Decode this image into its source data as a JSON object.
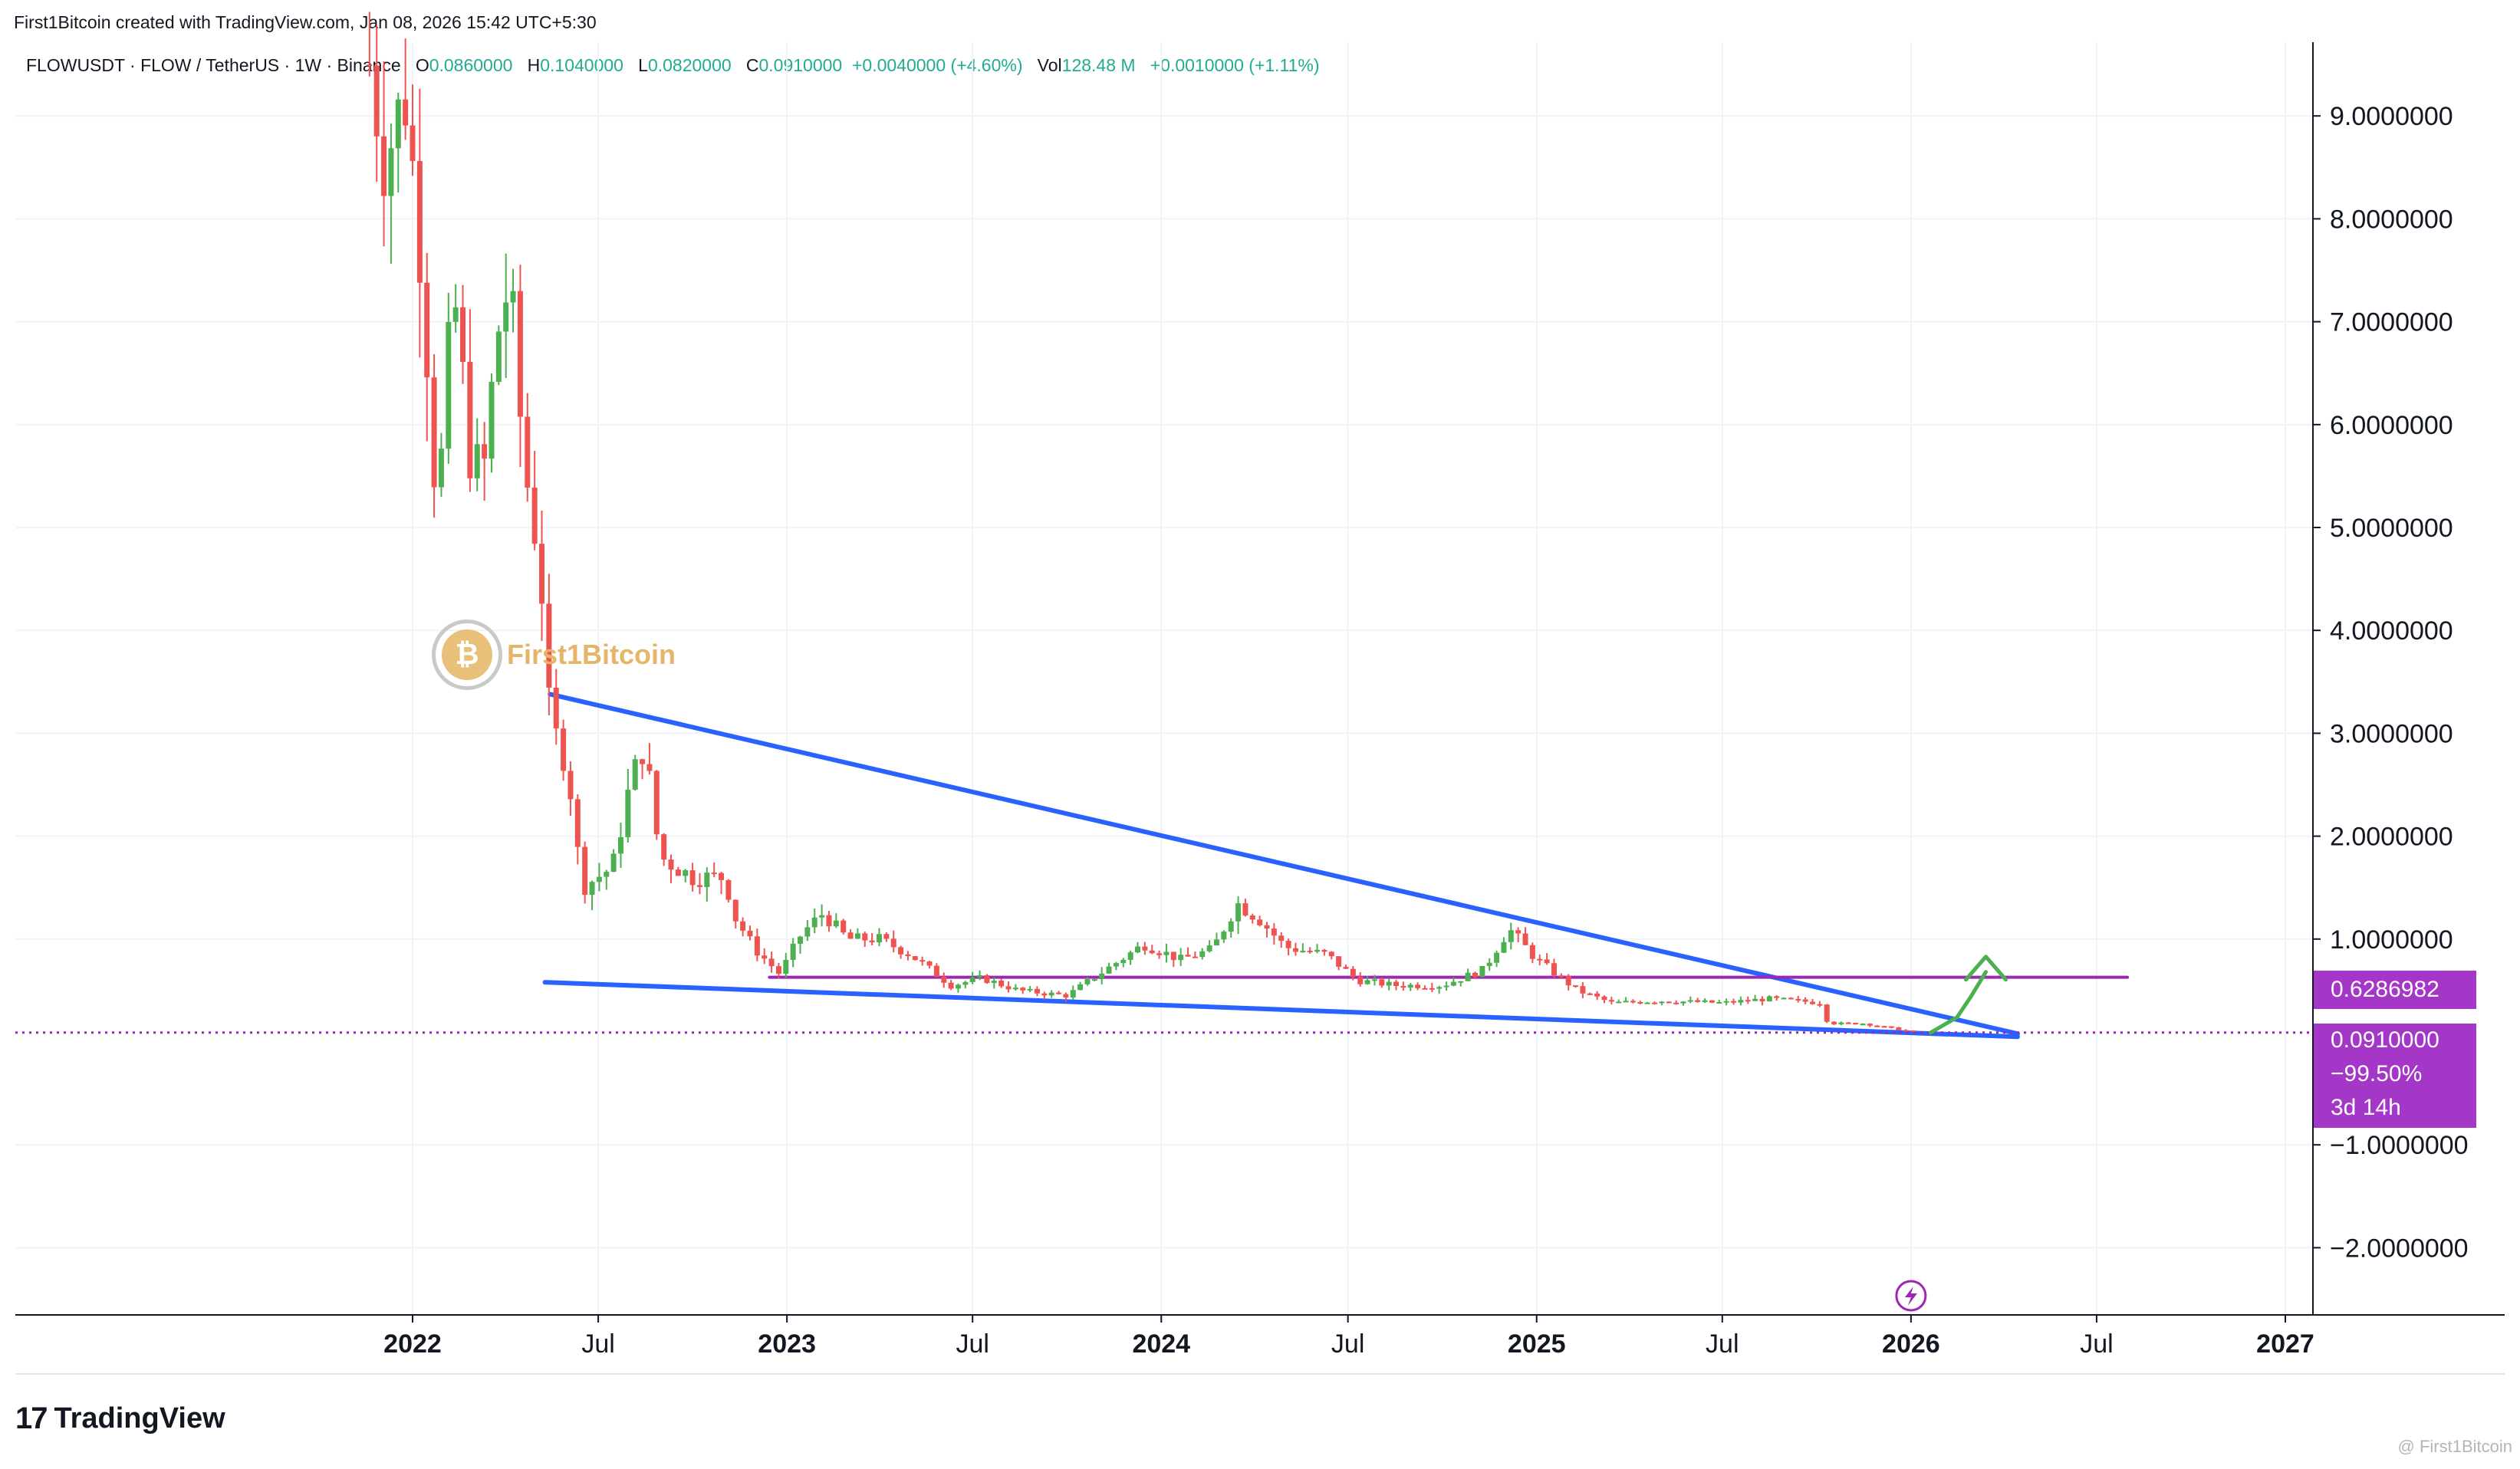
{
  "header": {
    "credit": "First1Bitcoin created with TradingView.com, Jan 08, 2026 15:42 UTC+5:30"
  },
  "legend": {
    "symbol": "FLOWUSDT · FLOW / TetherUS · 1W · Binance",
    "open_label": "O",
    "open": "0.0860000",
    "high_label": "H",
    "high": "0.1040000",
    "low_label": "L",
    "low": "0.0820000",
    "close_label": "C",
    "close": "0.0910000",
    "change": "+0.0040000 (+4.60%)",
    "vol_label": "Vol",
    "vol": "128.48 M",
    "vol_change": "+0.0010000 (+1.11%)"
  },
  "badges": {
    "resistance": "0.6286982",
    "last_price": "0.0910000",
    "last_change": "−99.50%",
    "countdown": "3d 14h"
  },
  "watermark": {
    "logo_text": "First1Bitcoin",
    "corner": "@ First1Bitcoin"
  },
  "brand": {
    "mark": "17",
    "name": "TradingView"
  },
  "colors": {
    "up": "#4caf50",
    "down": "#ef5350",
    "trendline": "#2962ff",
    "resistance": "#9c27b0",
    "projection": "#4caf50",
    "grid": "#f0f3fa"
  },
  "chart_data": {
    "type": "candlestick",
    "title": "FLOWUSDT · FLOW / TetherUS · 1W · Binance",
    "ylim": [
      -2.6,
      9.9
    ],
    "y_ticks": [
      9,
      8,
      7,
      6,
      5,
      4,
      3,
      2,
      1,
      0.6286982,
      0.091,
      -1,
      -2
    ],
    "y_tick_labels": [
      "9.0000000",
      "8.0000000",
      "7.0000000",
      "6.0000000",
      "5.0000000",
      "4.0000000",
      "3.0000000",
      "2.0000000",
      "1.0000000",
      "",
      "",
      "−1.0000000",
      "−2.0000000"
    ],
    "x_ticks": [
      {
        "date": "2022-01-01",
        "label": "2022",
        "bold": true
      },
      {
        "date": "2022-07-01",
        "label": "Jul",
        "bold": false
      },
      {
        "date": "2023-01-01",
        "label": "2023",
        "bold": true
      },
      {
        "date": "2023-07-01",
        "label": "Jul",
        "bold": false
      },
      {
        "date": "2024-01-01",
        "label": "2024",
        "bold": true
      },
      {
        "date": "2024-07-01",
        "label": "Jul",
        "bold": false
      },
      {
        "date": "2025-01-01",
        "label": "2025",
        "bold": true
      },
      {
        "date": "2025-07-01",
        "label": "Jul",
        "bold": false
      },
      {
        "date": "2026-01-01",
        "label": "2026",
        "bold": true
      },
      {
        "date": "2026-07-01",
        "label": "Jul",
        "bold": false
      },
      {
        "date": "2027-01-01",
        "label": "2027",
        "bold": true
      }
    ],
    "price_series": [
      {
        "date": "2021-11-20",
        "close": 9.5
      },
      {
        "date": "2021-12-05",
        "close": 8.6
      },
      {
        "date": "2021-12-25",
        "close": 9.2
      },
      {
        "date": "2022-01-10",
        "close": 7.6
      },
      {
        "date": "2022-01-25",
        "close": 5.1
      },
      {
        "date": "2022-02-10",
        "close": 7.3
      },
      {
        "date": "2022-02-25",
        "close": 5.8
      },
      {
        "date": "2022-03-10",
        "close": 5.4
      },
      {
        "date": "2022-03-25",
        "close": 6.9
      },
      {
        "date": "2022-04-05",
        "close": 7.4
      },
      {
        "date": "2022-04-20",
        "close": 5.6
      },
      {
        "date": "2022-05-05",
        "close": 4.7
      },
      {
        "date": "2022-05-15",
        "close": 3.1
      },
      {
        "date": "2022-06-01",
        "close": 2.7
      },
      {
        "date": "2022-06-15",
        "close": 1.5
      },
      {
        "date": "2022-06-30",
        "close": 1.6
      },
      {
        "date": "2022-07-15",
        "close": 1.7
      },
      {
        "date": "2022-08-01",
        "close": 2.5
      },
      {
        "date": "2022-08-15",
        "close": 2.9
      },
      {
        "date": "2022-08-30",
        "close": 1.8
      },
      {
        "date": "2022-09-15",
        "close": 1.7
      },
      {
        "date": "2022-10-01",
        "close": 1.6
      },
      {
        "date": "2022-10-15",
        "close": 1.6
      },
      {
        "date": "2022-11-01",
        "close": 1.6
      },
      {
        "date": "2022-11-12",
        "close": 1.2
      },
      {
        "date": "2022-12-01",
        "close": 0.9
      },
      {
        "date": "2022-12-25",
        "close": 0.66
      },
      {
        "date": "2023-01-15",
        "close": 1.05
      },
      {
        "date": "2023-02-05",
        "close": 1.25
      },
      {
        "date": "2023-03-01",
        "close": 1.0
      },
      {
        "date": "2023-04-01",
        "close": 1.0
      },
      {
        "date": "2023-05-01",
        "close": 0.85
      },
      {
        "date": "2023-06-10",
        "close": 0.55
      },
      {
        "date": "2023-07-10",
        "close": 0.62
      },
      {
        "date": "2023-08-15",
        "close": 0.5
      },
      {
        "date": "2023-10-01",
        "close": 0.45
      },
      {
        "date": "2023-11-15",
        "close": 0.75
      },
      {
        "date": "2023-12-15",
        "close": 0.95
      },
      {
        "date": "2024-01-20",
        "close": 0.8
      },
      {
        "date": "2024-02-20",
        "close": 0.9
      },
      {
        "date": "2024-03-15",
        "close": 1.35
      },
      {
        "date": "2024-04-05",
        "close": 1.2
      },
      {
        "date": "2024-05-01",
        "close": 0.92
      },
      {
        "date": "2024-06-10",
        "close": 0.85
      },
      {
        "date": "2024-07-10",
        "close": 0.6
      },
      {
        "date": "2024-08-15",
        "close": 0.55
      },
      {
        "date": "2024-10-01",
        "close": 0.55
      },
      {
        "date": "2024-11-10",
        "close": 0.7
      },
      {
        "date": "2024-12-05",
        "close": 1.1
      },
      {
        "date": "2025-01-01",
        "close": 0.8
      },
      {
        "date": "2025-02-10",
        "close": 0.5
      },
      {
        "date": "2025-03-15",
        "close": 0.38
      },
      {
        "date": "2025-05-01",
        "close": 0.4
      },
      {
        "date": "2025-07-01",
        "close": 0.38
      },
      {
        "date": "2025-08-15",
        "close": 0.42
      },
      {
        "date": "2025-10-05",
        "close": 0.38
      },
      {
        "date": "2025-10-12",
        "close": 0.18
      },
      {
        "date": "2025-11-15",
        "close": 0.18
      },
      {
        "date": "2026-01-08",
        "close": 0.091
      }
    ],
    "resistance_level": 0.6286982,
    "current_price": 0.091,
    "change_pct": "−99.50%",
    "trendlines": [
      {
        "name": "upper",
        "from": {
          "date": "2022-05-15",
          "price": 3.38
        },
        "to": {
          "date": "2026-04-15",
          "price": 0.08
        }
      },
      {
        "name": "lower",
        "from": {
          "date": "2022-05-10",
          "price": 0.58
        },
        "to": {
          "date": "2026-04-15",
          "price": 0.05
        }
      },
      {
        "name": "resistance",
        "from": {
          "date": "2022-12-15",
          "price": 0.6286982
        },
        "to": {
          "date": "2026-07-31",
          "price": 0.6286982
        }
      }
    ],
    "projection": [
      {
        "date": "2026-01-20",
        "price": 0.09
      },
      {
        "date": "2026-02-15",
        "price": 0.24
      },
      {
        "date": "2026-03-01",
        "price": 0.45
      },
      {
        "date": "2026-03-15",
        "price": 0.68
      }
    ],
    "grid": true,
    "legend_position": "top-left"
  }
}
